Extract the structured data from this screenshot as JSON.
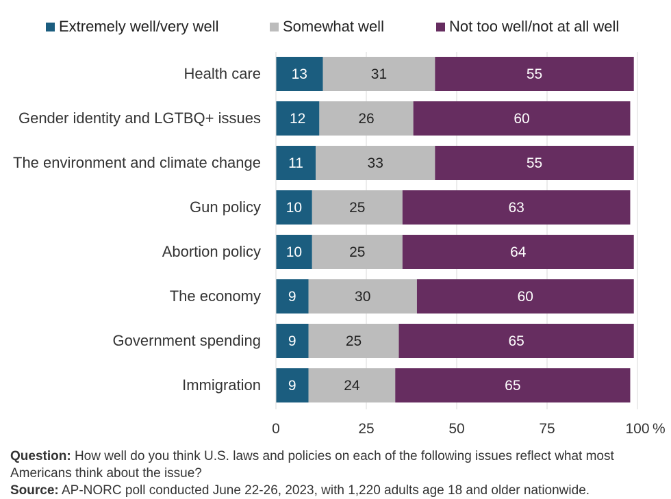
{
  "chart_data": {
    "type": "bar",
    "orientation": "horizontal",
    "stacked": true,
    "categories": [
      "Health care",
      "Gender identity and LGTBQ+ issues",
      "The environment and climate change",
      "Gun policy",
      "Abortion policy",
      "The economy",
      "Government spending",
      "Immigration"
    ],
    "series": [
      {
        "name": "Extremely well/very well",
        "color": "#1b5d7f",
        "label_color": "#ffffff",
        "values": [
          13,
          12,
          11,
          10,
          10,
          9,
          9,
          9
        ]
      },
      {
        "name": "Somewhat well",
        "color": "#bcbcbc",
        "label_color": "#222222",
        "values": [
          31,
          26,
          33,
          25,
          25,
          30,
          25,
          24
        ]
      },
      {
        "name": "Not too well/not at all well",
        "color": "#662d60",
        "label_color": "#ffffff",
        "values": [
          55,
          60,
          55,
          63,
          64,
          60,
          65,
          65
        ]
      }
    ],
    "xlim": [
      0,
      100
    ],
    "xticks": [
      "0",
      "25",
      "50",
      "75",
      "100"
    ],
    "x_unit": "%",
    "grid": "vertical",
    "legend_position": "top"
  },
  "footnote": {
    "question_label": "Question:",
    "question_text": " How well do you think U.S. laws and policies on each of the following issues reflect what most Americans think about the issue?",
    "source_label": "Source:",
    "source_text": " AP-NORC poll conducted June 22-26, 2023, with 1,220 adults age 18 and older nationwide."
  }
}
